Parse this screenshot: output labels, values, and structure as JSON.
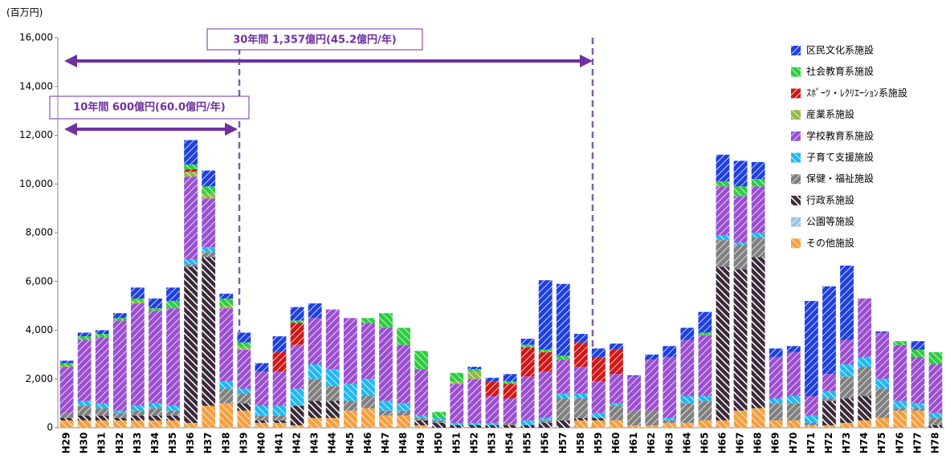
{
  "chart_data": {
    "type": "stacked_bar",
    "y_label": "(百万円)",
    "annotations": [
      "30年間 1,357億円(45.2億円/年)",
      "10年間 600億円(60.0億円/年)"
    ],
    "categories": [
      "H29",
      "H30",
      "H31",
      "H32",
      "H33",
      "H34",
      "H35",
      "H36",
      "H37",
      "H38",
      "H39",
      "H40",
      "H41",
      "H42",
      "H43",
      "H44",
      "H45",
      "H46",
      "H47",
      "H48",
      "H49",
      "H50",
      "H51",
      "H52",
      "H53",
      "H54",
      "H55",
      "H56",
      "H57",
      "H58",
      "H59",
      "H60",
      "H61",
      "H62",
      "H63",
      "H64",
      "H65",
      "H66",
      "H67",
      "H68",
      "H69",
      "H70",
      "H71",
      "H72",
      "H73",
      "H74",
      "H75",
      "H76",
      "H77",
      "H78"
    ],
    "ylim": [
      0,
      16000
    ],
    "yticks": [
      0,
      {
        "value": 2000,
        "label": "2,000"
      },
      {
        "value": 4000,
        "label": "4,000"
      },
      {
        "value": 6000,
        "label": "6,000"
      },
      {
        "value": 8000,
        "label": "8,000"
      },
      {
        "value": 10000,
        "label": "10,000"
      },
      {
        "value": 12000,
        "label": "12,000"
      },
      {
        "value": 14000,
        "label": "14,000"
      },
      {
        "value": 16000,
        "label": "16,000"
      }
    ],
    "series": [
      {
        "name": "その他施設",
        "color": "#f4a040",
        "values": [
          300,
          300,
          300,
          300,
          300,
          300,
          300,
          200,
          900,
          1000,
          700,
          200,
          200,
          100,
          400,
          400,
          700,
          800,
          500,
          500,
          100,
          0,
          0,
          0,
          0,
          0,
          0,
          0,
          0,
          300,
          300,
          300,
          100,
          100,
          200,
          200,
          300,
          300,
          700,
          800,
          300,
          300,
          100,
          100,
          200,
          300,
          400,
          700,
          700,
          0
        ]
      },
      {
        "name": "公園等施設",
        "color": "#9dc3e6",
        "values": [
          0,
          0,
          0,
          0,
          0,
          0,
          0,
          0,
          0,
          0,
          0,
          0,
          0,
          0,
          0,
          0,
          0,
          0,
          0,
          0,
          0,
          0,
          0,
          0,
          0,
          0,
          0,
          0,
          0,
          0,
          0,
          0,
          0,
          0,
          0,
          0,
          0,
          0,
          0,
          0,
          0,
          0,
          0,
          0,
          0,
          0,
          0,
          0,
          0,
          0
        ]
      },
      {
        "name": "行政系施設",
        "color": "#3a2a3a",
        "values": [
          100,
          200,
          200,
          100,
          200,
          200,
          200,
          6400,
          6100,
          0,
          300,
          100,
          100,
          800,
          700,
          700,
          0,
          0,
          0,
          0,
          200,
          200,
          100,
          100,
          100,
          100,
          100,
          200,
          300,
          100,
          100,
          0,
          0,
          0,
          0,
          0,
          0,
          6300,
          5800,
          6200,
          0,
          0,
          0,
          1000,
          1000,
          1000,
          0,
          0,
          0,
          100
        ]
      },
      {
        "name": "保健・福祉施設",
        "color": "#808080",
        "values": [
          200,
          400,
          300,
          200,
          200,
          300,
          200,
          100,
          200,
          600,
          400,
          200,
          200,
          0,
          900,
          600,
          400,
          500,
          200,
          200,
          100,
          100,
          0,
          0,
          0,
          100,
          0,
          100,
          900,
          800,
          0,
          600,
          600,
          600,
          100,
          800,
          800,
          1100,
          1000,
          800,
          700,
          700,
          100,
          100,
          900,
          1200,
          1200,
          100,
          100,
          300
        ]
      },
      {
        "name": "子育て支援施設",
        "color": "#22b8ee",
        "values": [
          0,
          200,
          200,
          100,
          200,
          200,
          200,
          200,
          200,
          300,
          200,
          400,
          400,
          700,
          600,
          700,
          700,
          700,
          400,
          300,
          100,
          100,
          100,
          100,
          100,
          0,
          200,
          100,
          200,
          200,
          200,
          100,
          0,
          0,
          100,
          300,
          200,
          200,
          100,
          200,
          200,
          300,
          300,
          300,
          500,
          400,
          400,
          300,
          200,
          200
        ]
      },
      {
        "name": "学校教育系施設",
        "color": "#9b4fd0",
        "values": [
          1900,
          2500,
          2700,
          3700,
          4200,
          3800,
          4000,
          3400,
          2000,
          3000,
          1600,
          1400,
          1400,
          1800,
          1900,
          2450,
          2700,
          2300,
          3000,
          2400,
          1900,
          0,
          1600,
          1800,
          1100,
          1000,
          1800,
          1900,
          1400,
          1100,
          1300,
          1200,
          1400,
          2100,
          2500,
          2300,
          2500,
          2000,
          1900,
          1900,
          1700,
          1800,
          800,
          700,
          1000,
          2400,
          1900,
          2300,
          1900,
          2000
        ]
      },
      {
        "name": "産業系施設",
        "color": "#92b846",
        "values": [
          50,
          0,
          0,
          0,
          100,
          0,
          0,
          200,
          200,
          100,
          100,
          0,
          0,
          0,
          0,
          0,
          0,
          0,
          0,
          0,
          0,
          0,
          100,
          300,
          0,
          0,
          0,
          0,
          0,
          0,
          0,
          0,
          0,
          0,
          0,
          0,
          0,
          0,
          0,
          0,
          0,
          0,
          0,
          0,
          0,
          0,
          0,
          0,
          0,
          0
        ]
      },
      {
        "name": "ｽﾎﾟｰﾂ・ﾚｸﾘｴｰｼｮﾝ系施設",
        "color": "#d01818",
        "values": [
          0,
          0,
          0,
          0,
          0,
          0,
          0,
          100,
          0,
          0,
          0,
          0,
          800,
          900,
          0,
          0,
          0,
          0,
          0,
          0,
          0,
          0,
          0,
          0,
          600,
          600,
          1200,
          800,
          0,
          1000,
          1000,
          1000,
          0,
          0,
          0,
          0,
          0,
          0,
          0,
          0,
          0,
          0,
          0,
          0,
          0,
          0,
          0,
          0,
          0,
          0
        ]
      },
      {
        "name": "社会教育系施設",
        "color": "#2ecc40",
        "values": [
          100,
          150,
          150,
          100,
          100,
          100,
          300,
          200,
          300,
          300,
          200,
          0,
          0,
          100,
          0,
          0,
          0,
          200,
          600,
          700,
          750,
          250,
          350,
          100,
          0,
          100,
          100,
          100,
          150,
          0,
          0,
          0,
          0,
          0,
          0,
          0,
          100,
          200,
          400,
          300,
          0,
          0,
          0,
          0,
          0,
          0,
          0,
          150,
          300,
          500
        ]
      },
      {
        "name": "区民文化系施設",
        "color": "#1e40e0",
        "values": [
          100,
          150,
          150,
          200,
          450,
          400,
          550,
          1000,
          650,
          200,
          400,
          350,
          650,
          550,
          600,
          0,
          0,
          0,
          0,
          0,
          0,
          0,
          0,
          100,
          150,
          300,
          250,
          2850,
          2950,
          350,
          350,
          250,
          50,
          200,
          450,
          500,
          850,
          1100,
          1050,
          700,
          350,
          250,
          3900,
          3600,
          3050,
          0,
          50,
          0,
          350,
          0
        ]
      }
    ]
  }
}
